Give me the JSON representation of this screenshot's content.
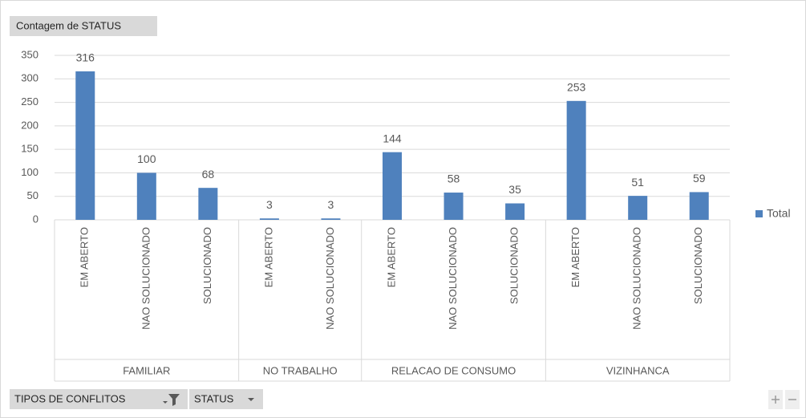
{
  "chart_data": {
    "type": "bar",
    "title": "Contagem de STATUS",
    "groups": [
      {
        "name": "FAMILIAR",
        "categories": [
          "EM ABERTO",
          "NAO SOLUCIONADO",
          "SOLUCIONADO"
        ]
      },
      {
        "name": "NO TRABALHO",
        "categories": [
          "EM ABERTO",
          "NAO SOLUCIONADO"
        ]
      },
      {
        "name": "RELACAO DE CONSUMO",
        "categories": [
          "EM ABERTO",
          "NAO SOLUCIONADO",
          "SOLUCIONADO"
        ]
      },
      {
        "name": "VIZINHANCA",
        "categories": [
          "EM ABERTO",
          "NAO SOLUCIONADO",
          "SOLUCIONADO"
        ]
      }
    ],
    "series": [
      {
        "name": "Total",
        "color": "#4f81bd",
        "values": [
          316,
          100,
          68,
          3,
          3,
          144,
          58,
          35,
          253,
          51,
          59
        ]
      }
    ],
    "ylim": [
      0,
      350
    ],
    "yticks": [
      0,
      50,
      100,
      150,
      200,
      250,
      300,
      350
    ],
    "grid": true,
    "legend": "right",
    "field_buttons": [
      "TIPOS DE CONFLITOS",
      "STATUS"
    ]
  }
}
